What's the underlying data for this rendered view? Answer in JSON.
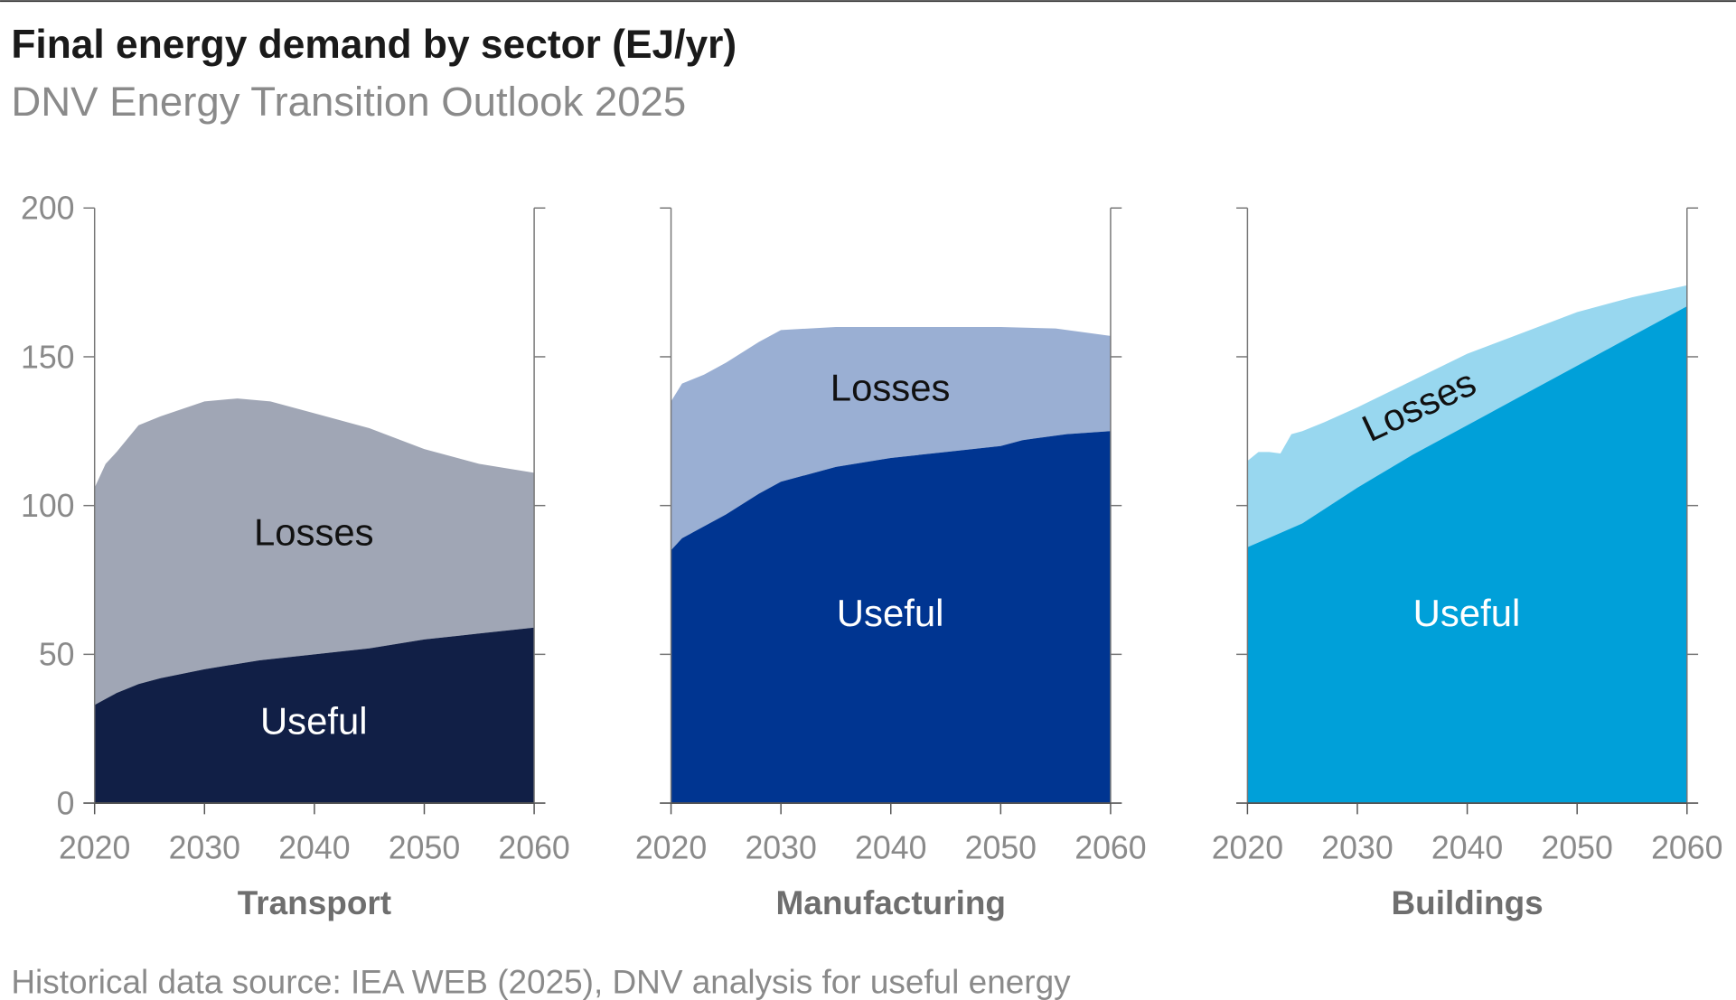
{
  "title": "Final energy demand by sector (EJ/yr)",
  "subtitle": "DNV Energy Transition Outlook 2025",
  "footer": "Historical data source: IEA WEB (2025), DNV analysis for useful energy",
  "chart_data": [
    {
      "type": "area",
      "title": "Transport",
      "xlim": [
        2020,
        2060
      ],
      "ylim": [
        0,
        200
      ],
      "xticks": [
        2020,
        2030,
        2040,
        2050,
        2060
      ],
      "yticks": [
        0,
        50,
        100,
        150,
        200
      ],
      "ylabel": "EJ/yr",
      "series": [
        {
          "name": "Useful",
          "color": "#111f46",
          "label_color": "#ffffff",
          "x": [
            2020,
            2021,
            2022,
            2024,
            2026,
            2030,
            2035,
            2040,
            2045,
            2050,
            2055,
            2060
          ],
          "values": [
            33,
            35,
            37,
            40,
            42,
            45,
            48,
            50,
            52,
            55,
            57,
            59
          ]
        },
        {
          "name": "Losses",
          "color": "#a0a6b5",
          "label_color": "#111111",
          "x": [
            2020,
            2021,
            2022,
            2024,
            2026,
            2030,
            2033,
            2036,
            2040,
            2045,
            2050,
            2055,
            2060
          ],
          "total": [
            106,
            114,
            118,
            127,
            130,
            135,
            136,
            135,
            131,
            126,
            119,
            114,
            111
          ]
        }
      ]
    },
    {
      "type": "area",
      "title": "Manufacturing",
      "xlim": [
        2020,
        2060
      ],
      "ylim": [
        0,
        200
      ],
      "xticks": [
        2020,
        2030,
        2040,
        2050,
        2060
      ],
      "series": [
        {
          "name": "Useful",
          "color": "#003591",
          "label_color": "#ffffff",
          "x": [
            2020,
            2021,
            2022,
            2025,
            2028,
            2030,
            2035,
            2040,
            2045,
            2050,
            2052,
            2056,
            2060
          ],
          "values": [
            85,
            89,
            91,
            97,
            104,
            108,
            113,
            116,
            118,
            120,
            122,
            124,
            125
          ]
        },
        {
          "name": "Losses",
          "color": "#9aafd3",
          "label_color": "#111111",
          "x": [
            2020,
            2021,
            2023,
            2025,
            2028,
            2030,
            2035,
            2040,
            2045,
            2050,
            2055,
            2060
          ],
          "total": [
            135,
            141,
            144,
            148,
            155,
            159,
            160,
            160,
            160,
            160,
            159.5,
            157
          ]
        }
      ]
    },
    {
      "type": "area",
      "title": "Buildings",
      "xlim": [
        2020,
        2060
      ],
      "ylim": [
        0,
        200
      ],
      "xticks": [
        2020,
        2030,
        2040,
        2050,
        2060
      ],
      "series": [
        {
          "name": "Useful",
          "color": "#00a0d9",
          "label_color": "#ffffff",
          "x": [
            2020,
            2025,
            2030,
            2035,
            2040,
            2045,
            2050,
            2055,
            2060
          ],
          "values": [
            86,
            94,
            106,
            117,
            127,
            137,
            147,
            157,
            167
          ]
        },
        {
          "name": "Losses",
          "color": "#98d7ef",
          "label_color": "#111111",
          "x": [
            2020,
            2021,
            2022,
            2023,
            2024,
            2025,
            2027,
            2030,
            2035,
            2040,
            2045,
            2050,
            2055,
            2060
          ],
          "total": [
            115,
            118,
            118,
            117.5,
            124,
            125,
            128,
            133,
            142,
            151,
            158,
            165,
            170,
            174
          ]
        }
      ]
    }
  ]
}
